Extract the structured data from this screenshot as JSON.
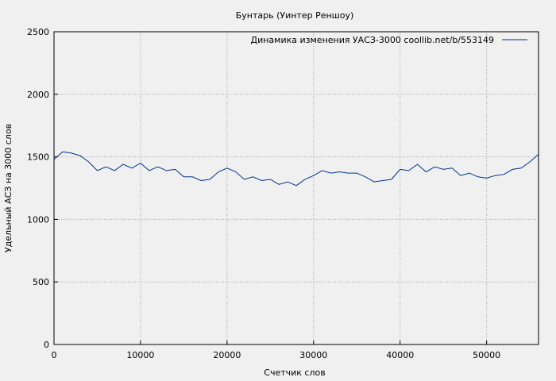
{
  "chart_data": {
    "type": "line",
    "title": "Бунтарь (Уинтер Реншоу)",
    "xlabel": "Счетчик слов",
    "ylabel": "Удельный АСЗ на 3000 слов",
    "xlim": [
      0,
      56000
    ],
    "ylim": [
      0,
      2500
    ],
    "xticks": [
      0,
      10000,
      20000,
      30000,
      40000,
      50000
    ],
    "yticks": [
      0,
      500,
      1000,
      1500,
      2000,
      2500
    ],
    "xtick_labels": [
      "0",
      "10000",
      "20000",
      "30000",
      "40000",
      "50000"
    ],
    "ytick_labels": [
      "0",
      "500",
      "1000",
      "1500",
      "2000",
      "2500"
    ],
    "grid": true,
    "legend_position": "top-right",
    "series": [
      {
        "name": "Динамика изменения УАСЗ-3000  coollib.net/b/553149",
        "color": "#00308f",
        "x": [
          0,
          1000,
          2000,
          3000,
          4000,
          5000,
          6000,
          7000,
          8000,
          9000,
          10000,
          11000,
          12000,
          13000,
          14000,
          15000,
          16000,
          17000,
          18000,
          19000,
          20000,
          21000,
          22000,
          23000,
          24000,
          25000,
          26000,
          27000,
          28000,
          29000,
          30000,
          31000,
          32000,
          33000,
          34000,
          35000,
          36000,
          37000,
          38000,
          39000,
          40000,
          41000,
          42000,
          43000,
          44000,
          45000,
          46000,
          47000,
          48000,
          49000,
          50000,
          51000,
          52000,
          53000,
          54000,
          55000,
          56000
        ],
        "y": [
          1480,
          1540,
          1530,
          1510,
          1460,
          1390,
          1420,
          1390,
          1440,
          1410,
          1450,
          1390,
          1420,
          1390,
          1400,
          1340,
          1340,
          1310,
          1320,
          1380,
          1410,
          1380,
          1320,
          1340,
          1310,
          1320,
          1280,
          1300,
          1270,
          1320,
          1350,
          1390,
          1370,
          1380,
          1370,
          1370,
          1340,
          1300,
          1310,
          1320,
          1400,
          1390,
          1440,
          1380,
          1420,
          1400,
          1410,
          1350,
          1370,
          1340,
          1330,
          1350,
          1360,
          1400,
          1410,
          1460,
          1520
        ]
      }
    ]
  }
}
